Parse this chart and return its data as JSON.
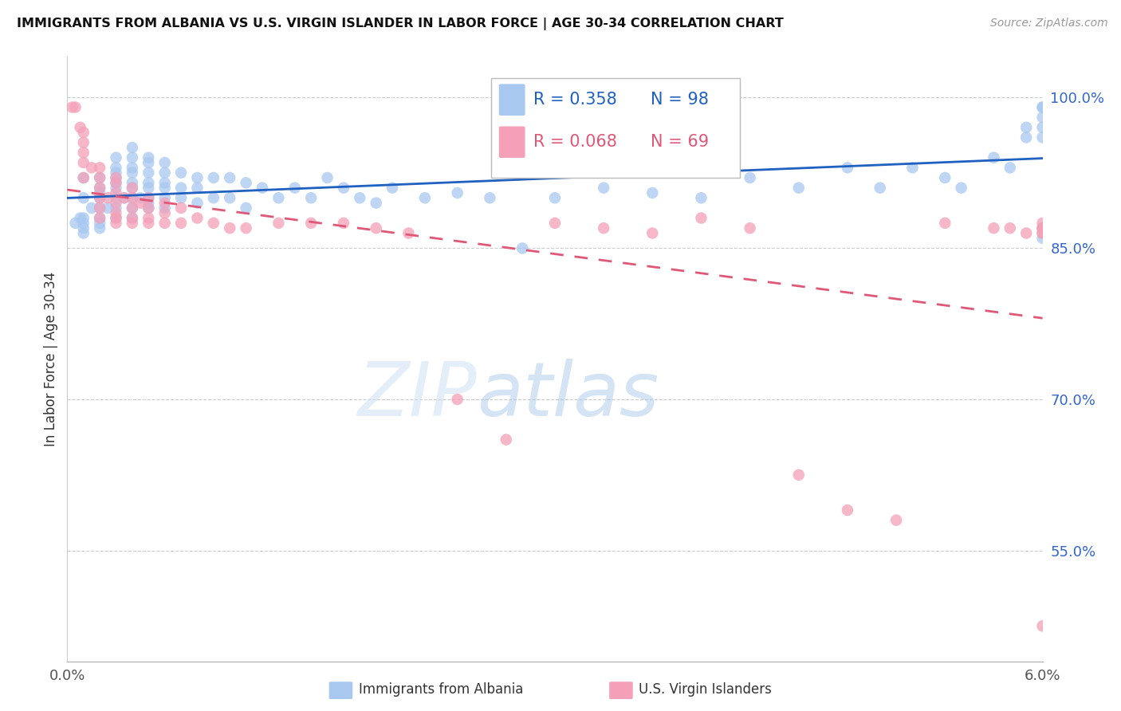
{
  "title": "IMMIGRANTS FROM ALBANIA VS U.S. VIRGIN ISLANDER IN LABOR FORCE | AGE 30-34 CORRELATION CHART",
  "source": "Source: ZipAtlas.com",
  "ylabel": "In Labor Force | Age 30-34",
  "yticks": [
    0.55,
    0.7,
    0.85,
    1.0
  ],
  "ytick_labels": [
    "55.0%",
    "70.0%",
    "85.0%",
    "100.0%"
  ],
  "xmin": 0.0,
  "xmax": 0.06,
  "ymin": 0.44,
  "ymax": 1.04,
  "legend_blue_r": "R = 0.358",
  "legend_blue_n": "N = 98",
  "legend_pink_r": "R = 0.068",
  "legend_pink_n": "N = 69",
  "legend_label_blue": "Immigrants from Albania",
  "legend_label_pink": "U.S. Virgin Islanders",
  "blue_color": "#A8C8F0",
  "pink_color": "#F4A0B8",
  "trendline_blue": "#2060C0",
  "trendline_pink": "#E05878",
  "watermark_zip": "ZIP",
  "watermark_atlas": "atlas",
  "blue_x": [
    0.0005,
    0.0008,
    0.001,
    0.001,
    0.001,
    0.001,
    0.001,
    0.001,
    0.0015,
    0.002,
    0.002,
    0.002,
    0.002,
    0.002,
    0.002,
    0.002,
    0.002,
    0.0025,
    0.003,
    0.003,
    0.003,
    0.003,
    0.003,
    0.003,
    0.003,
    0.003,
    0.003,
    0.0035,
    0.004,
    0.004,
    0.004,
    0.004,
    0.004,
    0.004,
    0.004,
    0.004,
    0.004,
    0.0045,
    0.005,
    0.005,
    0.005,
    0.005,
    0.005,
    0.005,
    0.005,
    0.005,
    0.006,
    0.006,
    0.006,
    0.006,
    0.006,
    0.006,
    0.007,
    0.007,
    0.007,
    0.008,
    0.008,
    0.008,
    0.009,
    0.009,
    0.01,
    0.01,
    0.011,
    0.011,
    0.012,
    0.013,
    0.014,
    0.015,
    0.016,
    0.017,
    0.018,
    0.019,
    0.02,
    0.022,
    0.024,
    0.026,
    0.028,
    0.03,
    0.033,
    0.036,
    0.039,
    0.042,
    0.045,
    0.048,
    0.05,
    0.052,
    0.054,
    0.055,
    0.057,
    0.058,
    0.059,
    0.059,
    0.06,
    0.06,
    0.06,
    0.06,
    0.06,
    0.06
  ],
  "blue_y": [
    0.875,
    0.88,
    0.92,
    0.9,
    0.88,
    0.875,
    0.87,
    0.865,
    0.89,
    0.92,
    0.91,
    0.905,
    0.9,
    0.89,
    0.88,
    0.875,
    0.87,
    0.89,
    0.94,
    0.93,
    0.925,
    0.92,
    0.915,
    0.91,
    0.9,
    0.89,
    0.88,
    0.9,
    0.95,
    0.94,
    0.93,
    0.925,
    0.915,
    0.91,
    0.9,
    0.89,
    0.88,
    0.9,
    0.94,
    0.935,
    0.925,
    0.915,
    0.91,
    0.9,
    0.895,
    0.89,
    0.935,
    0.925,
    0.915,
    0.91,
    0.9,
    0.89,
    0.925,
    0.91,
    0.9,
    0.92,
    0.91,
    0.895,
    0.92,
    0.9,
    0.92,
    0.9,
    0.915,
    0.89,
    0.91,
    0.9,
    0.91,
    0.9,
    0.92,
    0.91,
    0.9,
    0.895,
    0.91,
    0.9,
    0.905,
    0.9,
    0.85,
    0.9,
    0.91,
    0.905,
    0.9,
    0.92,
    0.91,
    0.93,
    0.91,
    0.93,
    0.92,
    0.91,
    0.94,
    0.93,
    0.96,
    0.97,
    0.99,
    0.99,
    0.98,
    0.97,
    0.96,
    0.86
  ],
  "pink_x": [
    0.0003,
    0.0005,
    0.0008,
    0.001,
    0.001,
    0.001,
    0.001,
    0.001,
    0.0015,
    0.002,
    0.002,
    0.002,
    0.002,
    0.002,
    0.002,
    0.0025,
    0.003,
    0.003,
    0.003,
    0.003,
    0.003,
    0.003,
    0.003,
    0.0035,
    0.004,
    0.004,
    0.004,
    0.004,
    0.004,
    0.0045,
    0.005,
    0.005,
    0.005,
    0.005,
    0.006,
    0.006,
    0.006,
    0.007,
    0.007,
    0.008,
    0.009,
    0.01,
    0.011,
    0.013,
    0.015,
    0.017,
    0.019,
    0.021,
    0.024,
    0.027,
    0.03,
    0.033,
    0.036,
    0.039,
    0.042,
    0.045,
    0.048,
    0.051,
    0.054,
    0.057,
    0.058,
    0.059,
    0.06,
    0.06,
    0.06,
    0.06,
    0.06,
    0.06,
    0.06
  ],
  "pink_y": [
    0.99,
    0.99,
    0.97,
    0.965,
    0.955,
    0.945,
    0.935,
    0.92,
    0.93,
    0.93,
    0.92,
    0.91,
    0.9,
    0.89,
    0.88,
    0.9,
    0.92,
    0.915,
    0.905,
    0.895,
    0.885,
    0.88,
    0.875,
    0.9,
    0.91,
    0.9,
    0.89,
    0.88,
    0.875,
    0.895,
    0.9,
    0.89,
    0.88,
    0.875,
    0.895,
    0.885,
    0.875,
    0.89,
    0.875,
    0.88,
    0.875,
    0.87,
    0.87,
    0.875,
    0.875,
    0.875,
    0.87,
    0.865,
    0.7,
    0.66,
    0.875,
    0.87,
    0.865,
    0.88,
    0.87,
    0.625,
    0.59,
    0.58,
    0.875,
    0.87,
    0.87,
    0.865,
    0.875,
    0.87,
    0.865,
    0.87,
    0.865,
    0.87,
    0.475
  ]
}
